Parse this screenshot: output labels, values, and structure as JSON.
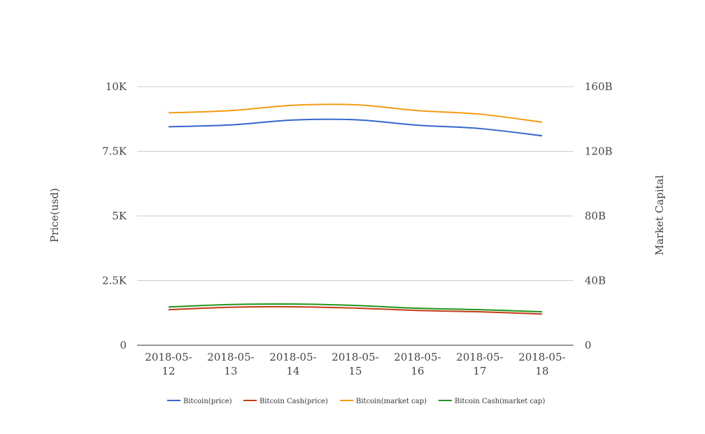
{
  "chart_data": {
    "type": "line",
    "categories": [
      "2018-05-12",
      "2018-05-13",
      "2018-05-14",
      "2018-05-15",
      "2018-05-16",
      "2018-05-17",
      "2018-05-18"
    ],
    "category_labels": [
      [
        "2018-05-",
        "12"
      ],
      [
        "2018-05-",
        "13"
      ],
      [
        "2018-05-",
        "14"
      ],
      [
        "2018-05-",
        "15"
      ],
      [
        "2018-05-",
        "16"
      ],
      [
        "2018-05-",
        "17"
      ],
      [
        "2018-05-",
        "18"
      ]
    ],
    "y_left": {
      "label": "Price(usd)",
      "min": 0,
      "max": 10000,
      "ticks": [
        0,
        2500,
        5000,
        7500,
        10000
      ],
      "tick_labels": [
        "0",
        "2.5K",
        "5K",
        "7.5K",
        "10K"
      ]
    },
    "y_right": {
      "label": "Market Capital",
      "min": 0,
      "max": 160000000000,
      "ticks": [
        0,
        40000000000,
        80000000000,
        120000000000,
        160000000000
      ],
      "tick_labels": [
        "0",
        "40B",
        "80B",
        "120B",
        "160B"
      ]
    },
    "grid": true,
    "legend_position": "bottom",
    "series": [
      {
        "name": "Bitcoin(price)",
        "axis": "left",
        "color": "#3366cc",
        "values": [
          8450,
          8520,
          8710,
          8720,
          8510,
          8380,
          8100
        ]
      },
      {
        "name": "Bitcoin Cash(price)",
        "axis": "right",
        "color": "#c23b14",
        "values": [
          22000000000,
          23500000000,
          23800000000,
          23000000000,
          21500000000,
          20700000000,
          19300000000
        ]
      },
      {
        "name": "Bitcoin(market cap)",
        "axis": "right",
        "color": "#f59a12",
        "values": [
          143800000000,
          145200000000,
          148500000000,
          148800000000,
          145200000000,
          143000000000,
          138000000000
        ]
      },
      {
        "name": "Bitcoin Cash(market cap)",
        "axis": "right",
        "color": "#20941b",
        "values": [
          23700000000,
          25200000000,
          25500000000,
          24600000000,
          22900000000,
          22000000000,
          20700000000
        ]
      }
    ]
  }
}
